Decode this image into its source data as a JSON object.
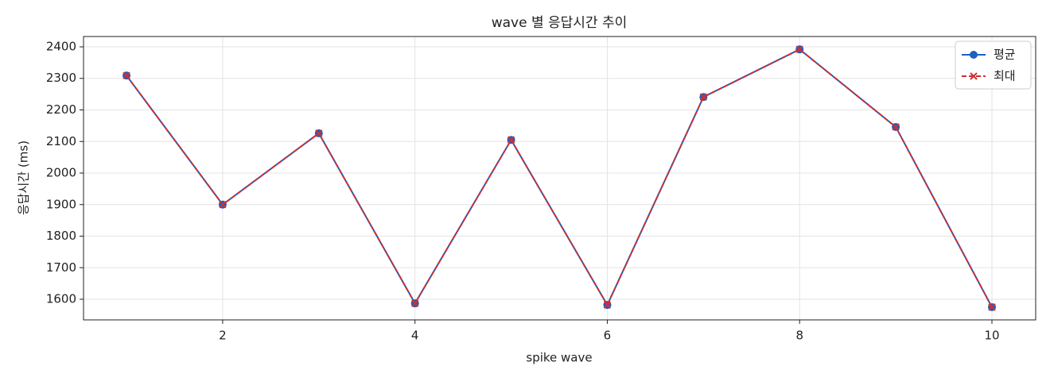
{
  "chart_data": {
    "type": "line",
    "title": "wave 별 응답시간 추이",
    "x_label": "spike wave",
    "y_label": "응답시간 (ms)",
    "x": [
      1,
      2,
      3,
      4,
      5,
      6,
      7,
      8,
      9,
      10
    ],
    "series": [
      {
        "name": "평균",
        "color": "#1f5fbf",
        "marker": "circle",
        "linestyle": "solid",
        "values": [
          2309,
          1900,
          2126,
          1587,
          2105,
          1582,
          2241,
          2392,
          2146,
          1575
        ]
      },
      {
        "name": "최대",
        "color": "#d03030",
        "marker": "x",
        "linestyle": "dashed",
        "values": [
          2309,
          1900,
          2126,
          1587,
          2105,
          1582,
          2241,
          2392,
          2146,
          1575
        ]
      }
    ],
    "xlim": [
      0.553,
      10.455
    ],
    "xticks": [
      2,
      4,
      6,
      8,
      10
    ],
    "ylim": [
      1534.6,
      2432.7
    ],
    "yticks": [
      1600,
      1700,
      1800,
      1900,
      2000,
      2100,
      2200,
      2300,
      2400
    ],
    "grid": true,
    "legend": "upper right"
  }
}
